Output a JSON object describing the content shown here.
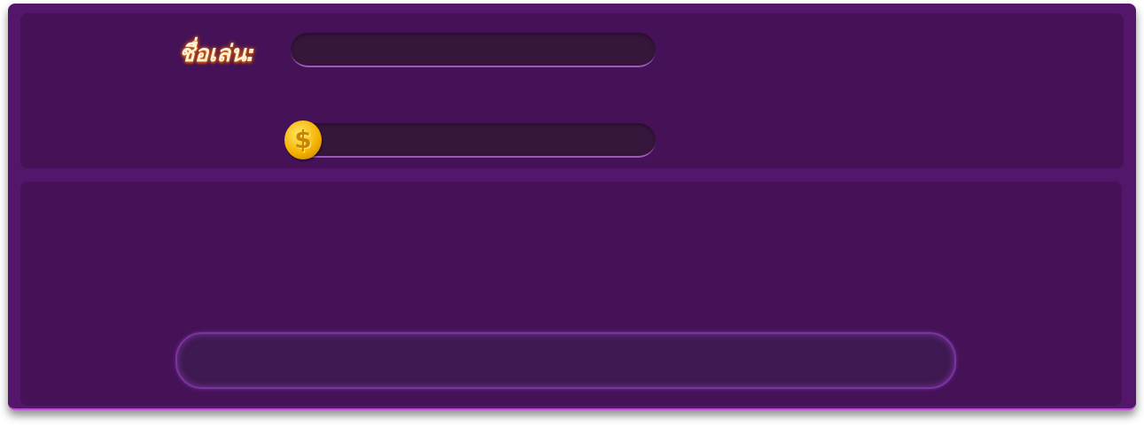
{
  "player": {
    "name_label": "ชื่อเล่น:",
    "name_value": "",
    "coins_value": ""
  },
  "icons": {
    "coin": "dollar-coin-icon"
  },
  "colors": {
    "panel": "#451257",
    "frame": "#54166a",
    "field": "#37163c",
    "label_glow": "#e06a10"
  },
  "action": {
    "label": ""
  }
}
